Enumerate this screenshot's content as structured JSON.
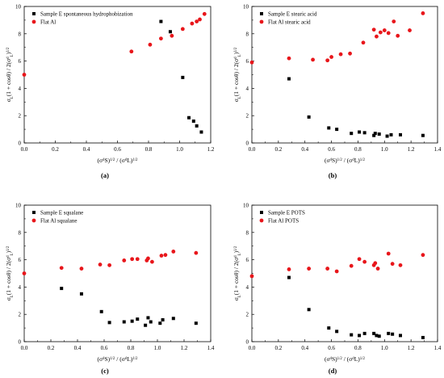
{
  "chart_data": [
    {
      "type": "scatter",
      "panel_label": "(a)",
      "xlabel": "(σs^d)^1/2 / (σL^d)^1/2",
      "ylabel": "σL(1 + cosθ) / 2(σL^d)^1/2",
      "xlim": [
        0,
        1.2
      ],
      "ylim": [
        0,
        10
      ],
      "xticks": [
        "0.0",
        "0.2",
        "0.4",
        "0.6",
        "0.8",
        "1.0",
        "1.2"
      ],
      "yticks": [
        "0",
        "2",
        "4",
        "6",
        "8",
        "10"
      ],
      "legend": "top-left",
      "series": [
        {
          "name": "Sample E spontaneous hydrophobization",
          "color": "#000000",
          "marker": "square",
          "points": [
            [
              0.88,
              8.9
            ],
            [
              0.94,
              8.15
            ],
            [
              1.02,
              4.8
            ],
            [
              1.06,
              1.85
            ],
            [
              1.09,
              1.6
            ],
            [
              1.11,
              1.25
            ],
            [
              1.14,
              0.8
            ]
          ]
        },
        {
          "name": "Flat Al",
          "color": "#e8161b",
          "marker": "circle",
          "points": [
            [
              0.0,
              5.0
            ],
            [
              0.69,
              6.7
            ],
            [
              0.81,
              7.2
            ],
            [
              0.88,
              7.65
            ],
            [
              0.95,
              7.85
            ],
            [
              1.02,
              8.35
            ],
            [
              1.08,
              8.75
            ],
            [
              1.11,
              8.9
            ],
            [
              1.13,
              9.05
            ],
            [
              1.16,
              9.45
            ]
          ]
        }
      ]
    },
    {
      "type": "scatter",
      "panel_label": "(b)",
      "xlabel": "(σs^d)^1/2 / (σL^d)^1/2",
      "ylabel": "σL(1 + cosθ) / 2(σL^d)^1/2",
      "xlim": [
        0,
        1.4
      ],
      "ylim": [
        0,
        10
      ],
      "xticks": [
        "0.0",
        "0.2",
        "0.4",
        "0.6",
        "0.8",
        "1.0",
        "1.2",
        "1.4"
      ],
      "yticks": [
        "0",
        "2",
        "4",
        "6",
        "8",
        "10"
      ],
      "legend": "top-left",
      "series": [
        {
          "name": "Sample E stearic acid",
          "color": "#000000",
          "marker": "square",
          "points": [
            [
              0.28,
              4.7
            ],
            [
              0.43,
              1.9
            ],
            [
              0.58,
              1.1
            ],
            [
              0.64,
              1.0
            ],
            [
              0.75,
              0.7
            ],
            [
              0.81,
              0.8
            ],
            [
              0.85,
              0.75
            ],
            [
              0.92,
              0.55
            ],
            [
              0.93,
              0.7
            ],
            [
              0.96,
              0.65
            ],
            [
              1.02,
              0.5
            ],
            [
              1.05,
              0.6
            ],
            [
              1.12,
              0.6
            ],
            [
              1.29,
              0.55
            ]
          ]
        },
        {
          "name": "Flat Al stearic acid",
          "color": "#e8161b",
          "marker": "circle",
          "points": [
            [
              0.0,
              5.9
            ],
            [
              0.28,
              6.2
            ],
            [
              0.46,
              6.1
            ],
            [
              0.57,
              6.05
            ],
            [
              0.6,
              6.3
            ],
            [
              0.67,
              6.5
            ],
            [
              0.74,
              6.55
            ],
            [
              0.84,
              7.35
            ],
            [
              0.92,
              8.3
            ],
            [
              0.94,
              7.8
            ],
            [
              0.97,
              8.1
            ],
            [
              1.0,
              8.25
            ],
            [
              1.03,
              8.05
            ],
            [
              1.07,
              8.9
            ],
            [
              1.1,
              7.85
            ],
            [
              1.19,
              8.25
            ],
            [
              1.29,
              9.5
            ]
          ]
        }
      ]
    },
    {
      "type": "scatter",
      "panel_label": "(c)",
      "xlabel": "(σs^d)^1/2 / (σL^d)^1/2",
      "ylabel": "σL(1 + cosθ) / 2(σL^d)^1/2",
      "xlim": [
        0,
        1.4
      ],
      "ylim": [
        0,
        10
      ],
      "xticks": [
        "0.0",
        "0.2",
        "0.4",
        "0.6",
        "0.8",
        "1.0",
        "1.2",
        "1.4"
      ],
      "yticks": [
        "0",
        "2",
        "4",
        "6",
        "8",
        "10"
      ],
      "legend": "top-left",
      "series": [
        {
          "name": "Sample E squalane",
          "color": "#000000",
          "marker": "square",
          "points": [
            [
              0.28,
              3.9
            ],
            [
              0.43,
              3.5
            ],
            [
              0.58,
              2.2
            ],
            [
              0.64,
              1.4
            ],
            [
              0.75,
              1.45
            ],
            [
              0.81,
              1.5
            ],
            [
              0.85,
              1.65
            ],
            [
              0.91,
              1.2
            ],
            [
              0.93,
              1.75
            ],
            [
              0.95,
              1.45
            ],
            [
              1.02,
              1.35
            ],
            [
              1.04,
              1.6
            ],
            [
              1.12,
              1.7
            ],
            [
              1.29,
              1.35
            ]
          ]
        },
        {
          "name": "Flat Al squalane",
          "color": "#e8161b",
          "marker": "circle",
          "points": [
            [
              0.0,
              5.0
            ],
            [
              0.28,
              5.4
            ],
            [
              0.43,
              5.35
            ],
            [
              0.57,
              5.65
            ],
            [
              0.64,
              5.6
            ],
            [
              0.75,
              5.95
            ],
            [
              0.81,
              6.05
            ],
            [
              0.85,
              6.05
            ],
            [
              0.92,
              5.95
            ],
            [
              0.93,
              6.1
            ],
            [
              0.96,
              5.85
            ],
            [
              1.03,
              6.3
            ],
            [
              1.06,
              6.35
            ],
            [
              1.12,
              6.6
            ],
            [
              1.29,
              6.5
            ]
          ]
        }
      ]
    },
    {
      "type": "scatter",
      "panel_label": "(d)",
      "xlabel": "(σs^d)^1/2 / (σL^d)^1/2",
      "ylabel": "σL(1 + cosθ) / 2(σL^d)^1/2",
      "xlim": [
        0,
        1.4
      ],
      "ylim": [
        0,
        10
      ],
      "xticks": [
        "0.0",
        "0.2",
        "0.4",
        "0.6",
        "0.8",
        "1.0",
        "1.2",
        "1.4"
      ],
      "yticks": [
        "0",
        "2",
        "4",
        "6",
        "8",
        "10"
      ],
      "legend": "top-left",
      "series": [
        {
          "name": "Sample E POTS",
          "color": "#000000",
          "marker": "square",
          "points": [
            [
              0.28,
              4.7
            ],
            [
              0.43,
              2.35
            ],
            [
              0.58,
              1.0
            ],
            [
              0.64,
              0.75
            ],
            [
              0.75,
              0.5
            ],
            [
              0.81,
              0.45
            ],
            [
              0.85,
              0.6
            ],
            [
              0.92,
              0.6
            ],
            [
              0.94,
              0.45
            ],
            [
              0.96,
              0.4
            ],
            [
              1.03,
              0.6
            ],
            [
              1.06,
              0.55
            ],
            [
              1.12,
              0.45
            ],
            [
              1.29,
              0.3
            ]
          ]
        },
        {
          "name": "Flat Al POTS",
          "color": "#e8161b",
          "marker": "circle",
          "points": [
            [
              0.0,
              4.8
            ],
            [
              0.28,
              5.3
            ],
            [
              0.43,
              5.35
            ],
            [
              0.57,
              5.35
            ],
            [
              0.64,
              5.15
            ],
            [
              0.75,
              5.55
            ],
            [
              0.81,
              6.05
            ],
            [
              0.85,
              5.85
            ],
            [
              0.92,
              5.6
            ],
            [
              0.93,
              5.75
            ],
            [
              0.95,
              5.35
            ],
            [
              1.03,
              6.45
            ],
            [
              1.06,
              5.7
            ],
            [
              1.12,
              5.6
            ],
            [
              1.29,
              6.35
            ]
          ]
        }
      ]
    }
  ]
}
